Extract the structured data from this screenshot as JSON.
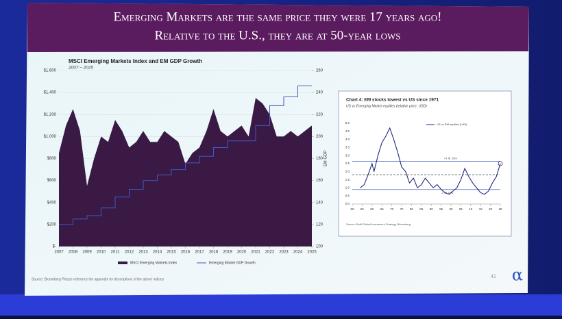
{
  "header": {
    "title_lines": [
      "Emerging Markets are the same price they were 17 years ago!",
      "Relative to the U.S., they are at 50-year lows"
    ]
  },
  "chart_data": [
    {
      "type": "area",
      "title": "MSCI Emerging Markets Index and EM GDP Growth",
      "subtitle": "2007 – 2025",
      "y2_label": "EM GDP",
      "xlim": [
        2007,
        2025
      ],
      "xticks": [
        2007,
        2008,
        2009,
        2010,
        2011,
        2012,
        2013,
        2014,
        2015,
        2016,
        2017,
        2018,
        2019,
        2020,
        2021,
        2022,
        2023,
        2024,
        2025
      ],
      "ylim": [
        0,
        1600
      ],
      "yticks": [
        {
          "value": 0,
          "label": "$-"
        },
        {
          "value": 200,
          "label": "$200"
        },
        {
          "value": 400,
          "label": "$400"
        },
        {
          "value": 600,
          "label": "$600"
        },
        {
          "value": 800,
          "label": "$800"
        },
        {
          "value": 1000,
          "label": "$1,000"
        },
        {
          "value": 1200,
          "label": "$1,200"
        },
        {
          "value": 1400,
          "label": "$1,400"
        },
        {
          "value": 1600,
          "label": "$1,600"
        }
      ],
      "y2lim": [
        100,
        260
      ],
      "y2ticks": [
        100,
        120,
        140,
        160,
        180,
        200,
        220,
        240,
        260
      ],
      "grid": true,
      "series": [
        {
          "name": "MSCI Emerging Markets Index",
          "color": "#3a1a45",
          "x": [
            2007.0,
            2007.5,
            2008.0,
            2008.5,
            2009.0,
            2009.5,
            2010.0,
            2010.5,
            2011.0,
            2011.5,
            2012.0,
            2012.5,
            2013.0,
            2013.5,
            2014.0,
            2014.5,
            2015.0,
            2015.5,
            2016.0,
            2016.5,
            2017.0,
            2017.5,
            2018.0,
            2018.5,
            2019.0,
            2019.5,
            2020.0,
            2020.5,
            2021.0,
            2021.5,
            2022.0,
            2022.5,
            2023.0,
            2023.5,
            2024.0,
            2024.5,
            2025.0
          ],
          "values": [
            850,
            1100,
            1250,
            1050,
            550,
            800,
            1000,
            950,
            1150,
            1050,
            900,
            950,
            1050,
            950,
            950,
            1050,
            1000,
            950,
            750,
            850,
            900,
            1050,
            1250,
            1050,
            1000,
            1050,
            1100,
            1000,
            1350,
            1300,
            1200,
            1000,
            1000,
            1050,
            1000,
            1050,
            1100
          ]
        },
        {
          "name": "Emerging Market GDP Growth",
          "color": "#3f56c6",
          "axis": "y2",
          "step": true,
          "x": [
            2007,
            2008,
            2009,
            2010,
            2011,
            2012,
            2013,
            2014,
            2015,
            2016,
            2017,
            2018,
            2019,
            2020,
            2021,
            2022,
            2023,
            2024,
            2025
          ],
          "values": [
            120,
            125,
            128,
            135,
            145,
            152,
            160,
            165,
            170,
            176,
            182,
            190,
            196,
            196,
            210,
            228,
            236,
            246,
            246
          ]
        }
      ]
    },
    {
      "type": "line",
      "title": "Chart 4: EM stocks lowest vs US since 1971",
      "subtitle": "US vs Emerging Market equities (relative price, USD)",
      "xlim": [
        1950,
        2025
      ],
      "xticks": [
        {
          "value": 1950,
          "label": "50"
        },
        {
          "value": 1955,
          "label": "55"
        },
        {
          "value": 1960,
          "label": "60"
        },
        {
          "value": 1965,
          "label": "65"
        },
        {
          "value": 1970,
          "label": "70"
        },
        {
          "value": 1975,
          "label": "75"
        },
        {
          "value": 1980,
          "label": "80"
        },
        {
          "value": 1985,
          "label": "85"
        },
        {
          "value": 1990,
          "label": "90"
        },
        {
          "value": 1995,
          "label": "95"
        },
        {
          "value": 2000,
          "label": "00"
        },
        {
          "value": 2005,
          "label": "05"
        },
        {
          "value": 2010,
          "label": "10"
        },
        {
          "value": 2015,
          "label": "15"
        },
        {
          "value": 2020,
          "label": "20"
        },
        {
          "value": 2025,
          "label": "25"
        }
      ],
      "ylim": [
        0,
        5
      ],
      "yticks": [
        {
          "value": 0,
          "label": "0.0"
        },
        0.5,
        {
          "value": 1,
          "label": "1.0"
        },
        1.5,
        {
          "value": 2,
          "label": "2.0"
        },
        2.5,
        {
          "value": 3,
          "label": "3.0"
        },
        3.5,
        {
          "value": 4,
          "label": "4.0"
        },
        4.5,
        {
          "value": 5,
          "label": "5.0"
        }
      ],
      "series": [
        {
          "name": "US vs EM equities (LHS)",
          "color": "#1f2a7a",
          "x": [
            1954,
            1956,
            1958,
            1960,
            1961,
            1963,
            1965,
            1967,
            1969,
            1971,
            1973,
            1975,
            1977,
            1979,
            1981,
            1983,
            1985,
            1987,
            1989,
            1991,
            1993,
            1995,
            1997,
            1999,
            2001,
            2003,
            2005,
            2007,
            2009,
            2011,
            2013,
            2015,
            2017,
            2019,
            2021,
            2023,
            2025
          ],
          "values": [
            1.0,
            1.2,
            1.8,
            2.5,
            2.0,
            3.0,
            3.8,
            4.2,
            4.7,
            4.0,
            3.2,
            2.3,
            2.0,
            1.3,
            1.6,
            1.0,
            1.2,
            1.6,
            1.3,
            1.0,
            1.2,
            0.9,
            0.7,
            0.6,
            0.8,
            1.0,
            1.5,
            2.2,
            1.7,
            1.3,
            1.0,
            0.7,
            0.6,
            0.8,
            1.3,
            1.7,
            2.5
          ]
        }
      ],
      "reference_lines": [
        {
          "value": 2.65,
          "label": "+1 St. Dev",
          "color": "#3f56c6",
          "dashed": false
        },
        {
          "value": 1.8,
          "color": "#222222",
          "dashed": true
        },
        {
          "value": 0.9,
          "label": "-1 St. Dev",
          "color": "#3f56c6",
          "dashed": false
        }
      ],
      "source": "Source: BofA Global Investment Strategy, Bloomberg"
    }
  ],
  "footer": {
    "source": "Source: Bloomberg   Please reference the appendix for descriptions of the above indices",
    "page": "42",
    "logo": "α"
  }
}
